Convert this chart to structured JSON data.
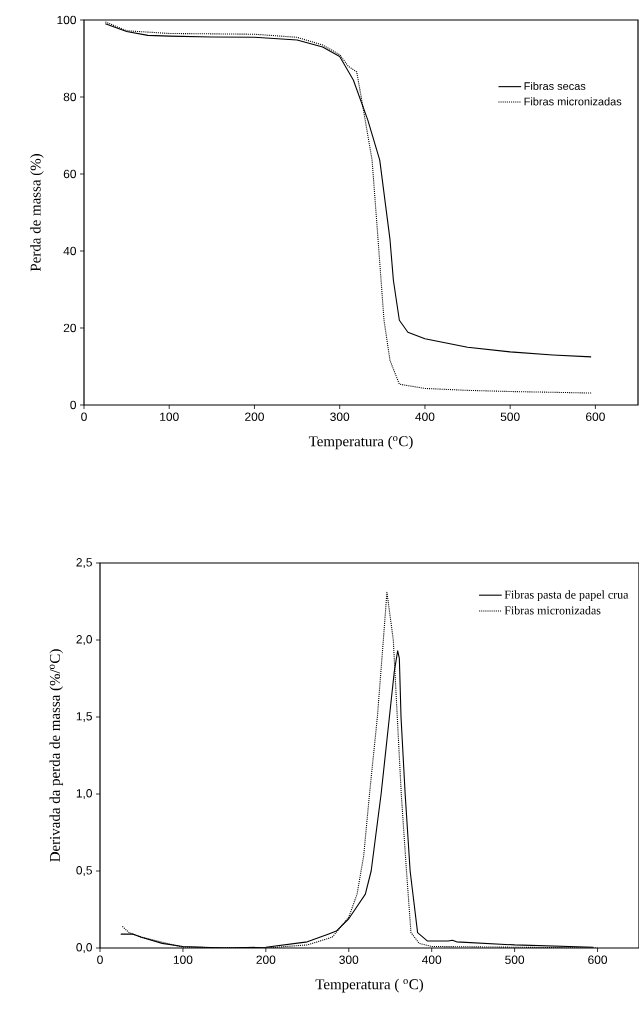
{
  "chart_data": [
    {
      "type": "line",
      "xlabel": "Temperatura ($^{o}$C)",
      "ylabel": "Perda de massa (%)",
      "xlim": [
        0,
        650
      ],
      "ylim": [
        0,
        100
      ],
      "xticks": [
        0,
        100,
        200,
        300,
        400,
        500,
        600
      ],
      "yticks": [
        0,
        20,
        40,
        60,
        80,
        100
      ],
      "legend": "top right",
      "marker": "none",
      "grid": false,
      "series": [
        {
          "name": "Fibras secas",
          "color": "#000000",
          "line_style": "solid",
          "x": [
            25,
            50,
            75,
            100,
            150,
            200,
            250,
            280,
            300,
            316,
            333,
            347,
            359,
            363,
            370,
            380,
            400,
            450,
            500,
            550,
            595
          ],
          "values": [
            99,
            97,
            96,
            95.8,
            95.6,
            95.5,
            94.8,
            93,
            90.5,
            84.4,
            74,
            63.6,
            43,
            32.4,
            22,
            18.9,
            17.2,
            15,
            13.8,
            13,
            12.5
          ]
        },
        {
          "name": "Fibras micronizadas",
          "color": "#000000",
          "line_style": "dotted",
          "x": [
            25,
            50,
            100,
            150,
            200,
            250,
            280,
            300,
            310,
            320,
            326,
            338,
            345,
            352,
            359,
            370,
            400,
            450,
            500,
            550,
            595
          ],
          "values": [
            99.5,
            97.2,
            96.5,
            96.4,
            96.3,
            95.5,
            93.5,
            91,
            88,
            86.5,
            79,
            63.6,
            43,
            22,
            11.6,
            5.4,
            4.3,
            3.8,
            3.5,
            3.3,
            3.1
          ]
        }
      ]
    },
    {
      "type": "line",
      "xlabel": "Temperatura ( $^{o}$C)",
      "ylabel": "Derivada da perda de massa (%/$^{o}$C)",
      "xlim": [
        0,
        650
      ],
      "ylim": [
        0,
        2.5
      ],
      "xticks": [
        0,
        100,
        200,
        300,
        400,
        500,
        600
      ],
      "yticks": [
        {
          "value": 0,
          "label": "0,0"
        },
        {
          "value": 0.5,
          "label": "0,5"
        },
        {
          "value": 1,
          "label": "1,0"
        },
        {
          "value": 1.5,
          "label": "1,5"
        },
        {
          "value": 2,
          "label": "2,0"
        },
        {
          "value": 2.5,
          "label": "2,5"
        }
      ],
      "legend": "top right",
      "marker": "none",
      "grid": false,
      "series": [
        {
          "name": "Fibras pasta de papel crua",
          "color": "#000000",
          "line_style": "solid",
          "x": [
            25,
            40,
            50,
            75,
            100,
            150,
            200,
            250,
            275,
            285,
            300,
            320,
            327,
            339,
            349,
            355,
            359,
            361,
            363,
            368,
            374,
            383,
            395,
            420,
            425,
            430,
            500,
            595
          ],
          "values": [
            0.09,
            0.09,
            0.07,
            0.03,
            0.01,
            0,
            0.005,
            0.04,
            0.09,
            0.11,
            0.19,
            0.35,
            0.5,
            1.0,
            1.5,
            1.8,
            1.93,
            1.88,
            1.5,
            1.0,
            0.5,
            0.1,
            0.045,
            0.045,
            0.05,
            0.04,
            0.02,
            0.005
          ]
        },
        {
          "name": "Fibras micronizadas",
          "color": "#000000",
          "line_style": "dotted",
          "x": [
            27,
            35,
            50,
            100,
            200,
            250,
            280,
            300,
            310,
            318,
            325,
            334.5,
            341.7,
            346,
            353.7,
            358.5,
            363.3,
            369.6,
            375,
            385,
            400,
            600
          ],
          "values": [
            0.14,
            0.1,
            0.07,
            0.005,
            0,
            0.02,
            0.07,
            0.2,
            0.35,
            0.6,
            1.0,
            1.5,
            2.0,
            2.31,
            2.0,
            1.5,
            1.0,
            0.5,
            0.1,
            0.03,
            0.01,
            0
          ]
        }
      ]
    }
  ]
}
